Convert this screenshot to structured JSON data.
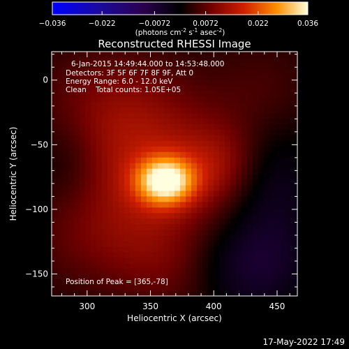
{
  "colorbar": {
    "tick_labels": [
      "-0.036",
      "-0.022",
      "-0.0072",
      "0.0072",
      "0.022",
      "0.036"
    ],
    "tick_values": [
      -0.036,
      -0.022,
      -0.0072,
      0.0072,
      0.022,
      0.036
    ],
    "range": [
      -0.036,
      0.036
    ],
    "units_text": "(photons cm",
    "units_sup1": "-2",
    "units_mid": " s",
    "units_sup2": "-1",
    "units_mid2": " asec",
    "units_sup3": "-2",
    "units_end": ")"
  },
  "chart_data": {
    "type": "heatmap",
    "title": "Reconstructed RHESSI Image",
    "xlabel": "Heliocentric X (arcsec)",
    "ylabel": "Heliocentric Y (arcsec)",
    "xlim": [
      272,
      466
    ],
    "ylim": [
      -167,
      22
    ],
    "xticks": [
      300,
      350,
      400,
      450
    ],
    "yticks": [
      0,
      -50,
      -100,
      -150
    ],
    "xtick_labels": [
      "300",
      "350",
      "400",
      "450"
    ],
    "ytick_labels": [
      "0",
      "-50",
      "-100",
      "-150"
    ],
    "annotations": {
      "time_range": "6-Jan-2015 14:49:44.000 to 14:53:48.000",
      "detectors": "Detectors: 3F 5F 6F 7F 8F 9F, Att 0",
      "energy": "Energy Range: 6.0 - 12.0 keV",
      "clean": "Clean    Total counts: 1.05E+05",
      "peak": "Position of Peak = [365,-78]"
    },
    "peak": {
      "x": 365,
      "y": -78
    },
    "sources": [
      {
        "x": 362,
        "y": -78,
        "amp": 0.028,
        "sx": 16,
        "sy": 13
      },
      {
        "x": 350,
        "y": -70,
        "amp": 0.01,
        "sx": 45,
        "sy": 38
      },
      {
        "x": 320,
        "y": -20,
        "amp": 0.007,
        "sx": 45,
        "sy": 35
      },
      {
        "x": 405,
        "y": -65,
        "amp": 0.007,
        "sx": 22,
        "sy": 22
      },
      {
        "x": 320,
        "y": -125,
        "amp": 0.006,
        "sx": 50,
        "sy": 30
      },
      {
        "x": 375,
        "y": -150,
        "amp": 0.005,
        "sx": 30,
        "sy": 25
      },
      {
        "x": 440,
        "y": -10,
        "amp": 0.004,
        "sx": 30,
        "sy": 30
      },
      {
        "x": 445,
        "y": -85,
        "amp": -0.006,
        "sx": 25,
        "sy": 40
      },
      {
        "x": 420,
        "y": -145,
        "amp": -0.008,
        "sx": 35,
        "sy": 25
      },
      {
        "x": 285,
        "y": -60,
        "amp": -0.004,
        "sx": 20,
        "sy": 25
      }
    ]
  },
  "timestamp": "17-May-2022 17:49"
}
